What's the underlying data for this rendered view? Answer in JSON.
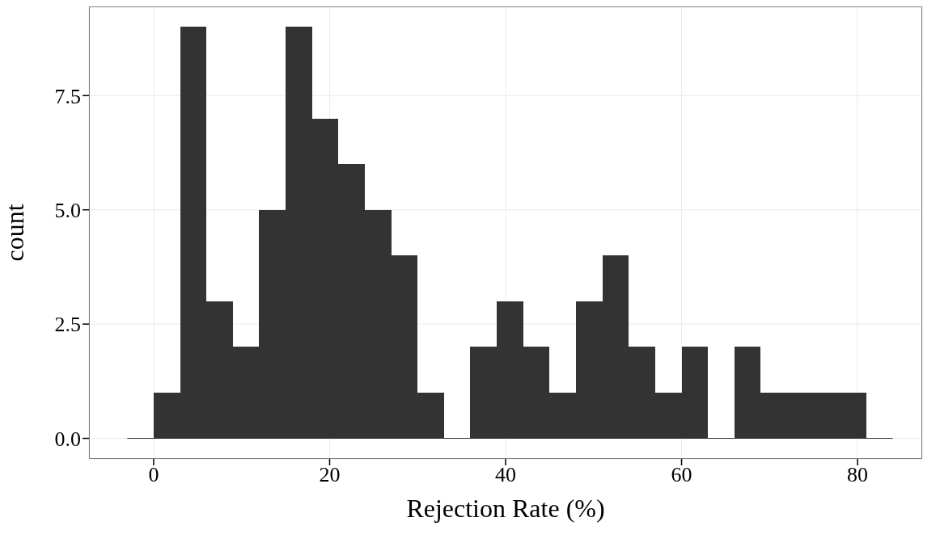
{
  "chart_data": {
    "type": "histogram",
    "xlabel": "Rejection Rate (%)",
    "ylabel": "count",
    "bins": [
      -3,
      0,
      3,
      6,
      9,
      12,
      15,
      18,
      21,
      24,
      27,
      30,
      33,
      36,
      39,
      42,
      45,
      48,
      51,
      54,
      57,
      60,
      63,
      66,
      69,
      72,
      75,
      78,
      81,
      84
    ],
    "values": [
      0,
      1,
      9,
      3,
      2,
      5,
      9,
      7,
      6,
      5,
      4,
      1,
      0,
      2,
      3,
      2,
      1,
      3,
      4,
      2,
      1,
      2,
      0,
      2,
      1,
      1,
      1,
      1,
      0
    ],
    "color": "#333333",
    "xlim": [
      -7.35,
      87.35
    ],
    "xticks": [
      0,
      20,
      40,
      60,
      80
    ],
    "ylim": [
      -0.45,
      9.45
    ],
    "yticks": [
      {
        "value": 0,
        "label": "0.0"
      },
      {
        "value": 2.5,
        "label": "2.5"
      },
      {
        "value": 5,
        "label": "5.0"
      },
      {
        "value": 7.5,
        "label": "7.5"
      }
    ],
    "grid": true
  }
}
